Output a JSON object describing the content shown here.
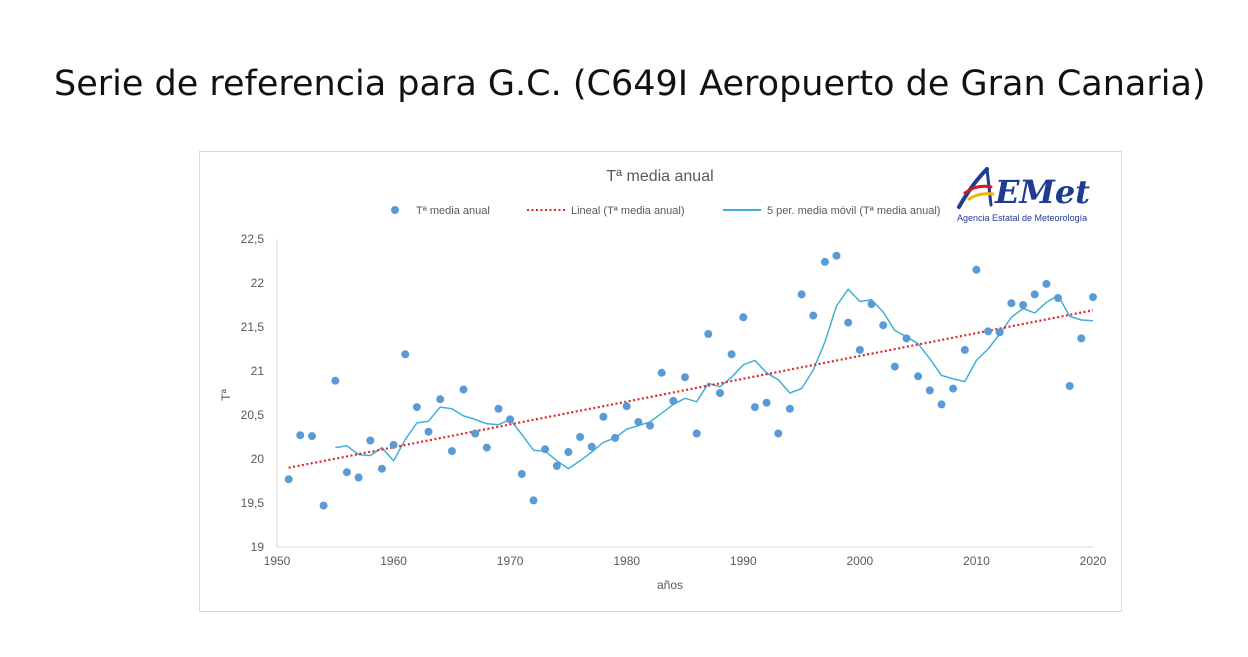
{
  "slide": {
    "title": "Serie de referencia para G.C. (C649I Aeropuerto de Gran Canaria)"
  },
  "logo": {
    "text": "AEMet",
    "subtitle": "Agencia Estatal de Meteorología",
    "colors": {
      "blue": "#1f3a93",
      "red": "#d7191c",
      "yellow": "#f2b600"
    }
  },
  "chart_data": {
    "type": "scatter",
    "title": "Tª media anual",
    "xlabel": "años",
    "ylabel": "Tª",
    "xlim": [
      1950,
      2020
    ],
    "ylim": [
      19,
      22.5
    ],
    "x_ticks": [
      1950,
      1960,
      1970,
      1980,
      1990,
      2000,
      2010,
      2020
    ],
    "y_ticks": [
      19,
      19.5,
      20,
      20.5,
      21,
      21.5,
      22,
      22.5
    ],
    "y_tick_labels": [
      "19",
      "19,5",
      "20",
      "20,5",
      "21",
      "21,5",
      "22",
      "22,5"
    ],
    "legend": [
      {
        "label": "Tª media anual",
        "kind": "marker",
        "color": "#5b9bd5"
      },
      {
        "label": "Lineal (Tª media anual)",
        "kind": "dotted",
        "color": "#e0262b"
      },
      {
        "label": "5 per. media móvil (Tª media anual)",
        "kind": "line",
        "color": "#41b0d6"
      }
    ],
    "legend_position": "top",
    "series": [
      {
        "name": "Tª media anual",
        "style": "markers",
        "color": "#5b9bd5",
        "x": [
          1951,
          1952,
          1953,
          1954,
          1955,
          1956,
          1957,
          1958,
          1959,
          1960,
          1961,
          1962,
          1963,
          1964,
          1965,
          1966,
          1967,
          1968,
          1969,
          1970,
          1971,
          1972,
          1973,
          1974,
          1975,
          1976,
          1977,
          1978,
          1979,
          1980,
          1981,
          1982,
          1983,
          1984,
          1985,
          1986,
          1987,
          1988,
          1989,
          1990,
          1991,
          1992,
          1993,
          1994,
          1995,
          1996,
          1997,
          1998,
          1999,
          2000,
          2001,
          2002,
          2003,
          2004,
          2005,
          2006,
          2007,
          2008,
          2009,
          2010,
          2011,
          2012,
          2013,
          2014,
          2015,
          2016,
          2017,
          2018,
          2019,
          2020
        ],
        "values": [
          19.77,
          20.27,
          20.26,
          19.47,
          20.89,
          19.85,
          19.79,
          20.21,
          19.89,
          20.16,
          21.19,
          20.59,
          20.31,
          20.68,
          20.09,
          20.79,
          20.29,
          20.13,
          20.57,
          20.45,
          19.83,
          19.53,
          20.11,
          19.92,
          20.08,
          20.25,
          20.14,
          20.48,
          20.24,
          20.6,
          20.42,
          20.38,
          20.98,
          20.66,
          20.93,
          20.29,
          21.42,
          20.75,
          21.19,
          21.61,
          20.59,
          20.64,
          20.29,
          20.57,
          21.87,
          21.63,
          22.24,
          22.31,
          21.55,
          21.24,
          21.76,
          21.52,
          21.05,
          21.37,
          20.94,
          20.78,
          20.62,
          20.8,
          21.24,
          22.15,
          21.45,
          21.44,
          21.77,
          21.75,
          21.87,
          21.99,
          21.83,
          20.83,
          21.37,
          21.84
        ]
      },
      {
        "name": "Lineal (Tª media anual)",
        "style": "dotted",
        "color": "#e0262b",
        "x": [
          1951,
          2020
        ],
        "values": [
          19.9,
          21.69
        ]
      },
      {
        "name": "5 per. media móvil (Tª media anual)",
        "style": "line",
        "color": "#41b0d6",
        "x": [
          1955,
          1956,
          1957,
          1958,
          1959,
          1960,
          1961,
          1962,
          1963,
          1964,
          1965,
          1966,
          1967,
          1968,
          1969,
          1970,
          1971,
          1972,
          1973,
          1974,
          1975,
          1976,
          1977,
          1978,
          1979,
          1980,
          1981,
          1982,
          1983,
          1984,
          1985,
          1986,
          1987,
          1988,
          1989,
          1990,
          1991,
          1992,
          1993,
          1994,
          1995,
          1996,
          1997,
          1998,
          1999,
          2000,
          2001,
          2002,
          2003,
          2004,
          2005,
          2006,
          2007,
          2008,
          2009,
          2010,
          2011,
          2012,
          2013,
          2014,
          2015,
          2016,
          2017,
          2018,
          2019,
          2020
        ],
        "values": [
          20.13,
          20.15,
          20.05,
          20.04,
          20.13,
          19.98,
          20.22,
          20.41,
          20.43,
          20.59,
          20.57,
          20.49,
          20.45,
          20.4,
          20.39,
          20.45,
          20.28,
          20.1,
          20.09,
          19.98,
          19.89,
          19.98,
          20.08,
          20.19,
          20.24,
          20.34,
          20.38,
          20.42,
          20.52,
          20.62,
          20.69,
          20.65,
          20.86,
          20.82,
          20.93,
          21.07,
          21.12,
          20.98,
          20.9,
          20.75,
          20.8,
          21.01,
          21.33,
          21.74,
          21.93,
          21.79,
          21.81,
          21.67,
          21.46,
          21.39,
          21.31,
          21.14,
          20.95,
          20.91,
          20.88,
          21.12,
          21.25,
          21.42,
          21.61,
          21.71,
          21.66,
          21.78,
          21.86,
          21.62,
          21.58,
          21.57
        ]
      }
    ]
  }
}
